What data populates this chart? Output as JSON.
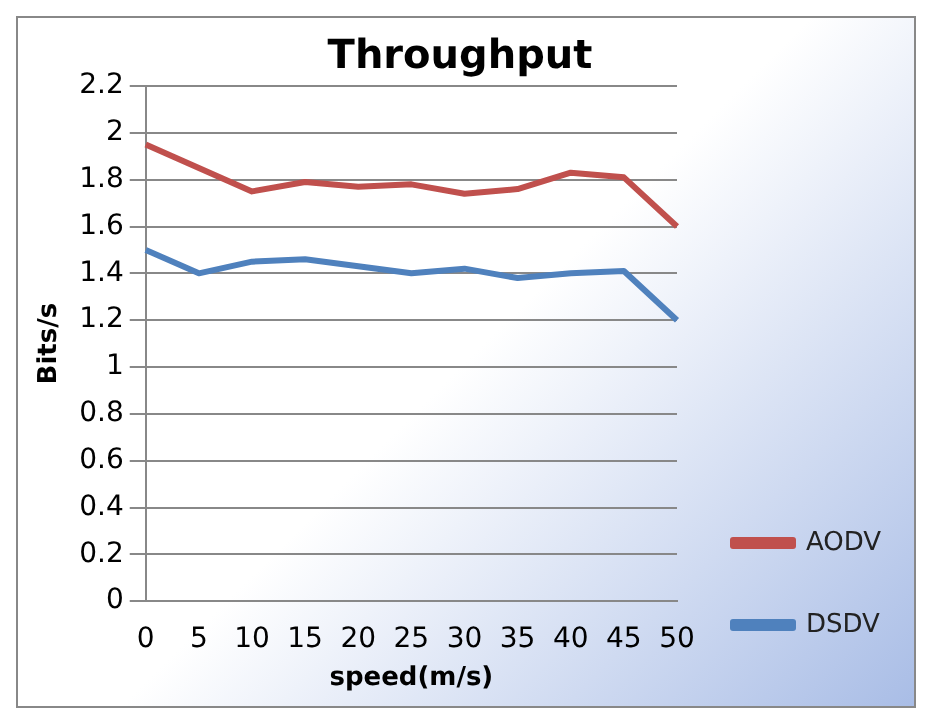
{
  "chart_data": {
    "type": "line",
    "title": "Throughput",
    "xlabel": "speed(m/s)",
    "ylabel": "Bits/s",
    "categories": [
      "0",
      "5",
      "10",
      "15",
      "20",
      "25",
      "30",
      "35",
      "40",
      "45",
      "50"
    ],
    "series": [
      {
        "name": "AODV",
        "color": "#c0504d",
        "values": [
          1.95,
          1.85,
          1.75,
          1.79,
          1.77,
          1.78,
          1.74,
          1.76,
          1.83,
          1.81,
          1.6
        ]
      },
      {
        "name": "DSDV",
        "color": "#4f81bd",
        "values": [
          1.5,
          1.4,
          1.45,
          1.46,
          1.43,
          1.4,
          1.42,
          1.38,
          1.4,
          1.41,
          1.2
        ]
      }
    ],
    "ylim": [
      0,
      2.2
    ],
    "yticks": [
      0,
      0.2,
      0.4,
      0.6,
      0.8,
      1,
      1.2,
      1.4,
      1.6,
      1.8,
      2,
      2.2
    ],
    "grid": "y",
    "legend": "right",
    "marker": "none",
    "line_style": "solid"
  }
}
